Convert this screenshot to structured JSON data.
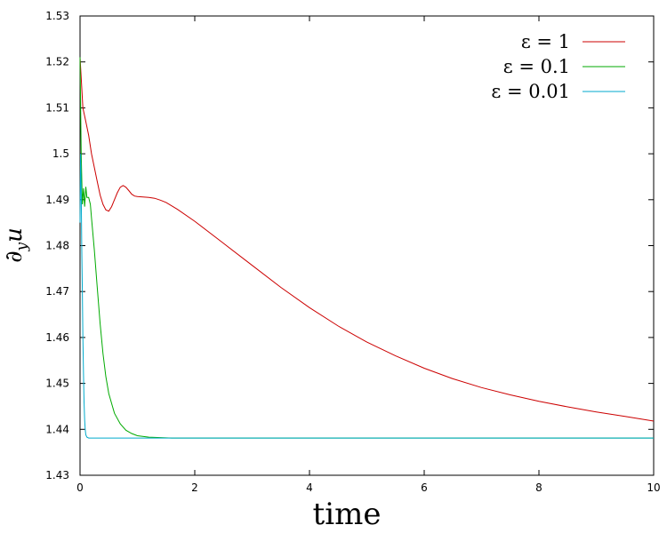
{
  "chart_data": {
    "type": "line",
    "title": "",
    "xlabel": "time",
    "ylabel": "∂yu",
    "xlim": [
      0,
      10
    ],
    "ylim": [
      1.43,
      1.53
    ],
    "xticks": [
      0,
      2,
      4,
      6,
      8,
      10
    ],
    "yticks": [
      1.43,
      1.44,
      1.45,
      1.46,
      1.47,
      1.48,
      1.49,
      1.5,
      1.51,
      1.52,
      1.53
    ],
    "ytick_labels": [
      "1.43",
      "1.44",
      "1.45",
      "1.46",
      "1.47",
      "1.48",
      "1.49",
      "1.5",
      "1.51",
      "1.52",
      "1.53"
    ],
    "grid": false,
    "legend_position": "top-right",
    "series": [
      {
        "name": "ε = 1",
        "color": "#cc0000",
        "x": [
          0,
          0.05,
          0.1,
          0.15,
          0.2,
          0.25,
          0.3,
          0.35,
          0.4,
          0.45,
          0.5,
          0.55,
          0.6,
          0.65,
          0.7,
          0.75,
          0.8,
          0.85,
          0.9,
          0.95,
          1.0,
          1.1,
          1.2,
          1.3,
          1.4,
          1.5,
          1.7,
          2.0,
          2.5,
          3.0,
          3.5,
          4.0,
          4.5,
          5.0,
          5.5,
          6.0,
          6.5,
          7.0,
          7.5,
          8.0,
          8.5,
          9.0,
          9.5,
          10
        ],
        "y": [
          1.521,
          1.51,
          1.507,
          1.504,
          1.5,
          1.497,
          1.494,
          1.491,
          1.489,
          1.4878,
          1.4875,
          1.4885,
          1.49,
          1.4915,
          1.4927,
          1.4931,
          1.4927,
          1.492,
          1.4912,
          1.4908,
          1.4907,
          1.4906,
          1.4905,
          1.4903,
          1.4899,
          1.4894,
          1.4879,
          1.4853,
          1.4805,
          1.4757,
          1.4709,
          1.4665,
          1.4625,
          1.459,
          1.456,
          1.4533,
          1.451,
          1.4491,
          1.4475,
          1.4461,
          1.4449,
          1.4438,
          1.4428,
          1.4418
        ]
      },
      {
        "name": "ε = 0.1",
        "color": "#00aa00",
        "x": [
          0,
          0.02,
          0.04,
          0.06,
          0.08,
          0.1,
          0.12,
          0.15,
          0.18,
          0.2,
          0.25,
          0.3,
          0.35,
          0.4,
          0.45,
          0.5,
          0.6,
          0.7,
          0.8,
          0.9,
          1.0,
          1.2,
          1.4,
          1.6,
          1.8,
          2.0,
          2.2,
          4,
          6,
          8,
          10
        ],
        "y": [
          1.521,
          1.5,
          1.489,
          1.4925,
          1.4885,
          1.4928,
          1.4905,
          1.4905,
          1.489,
          1.486,
          1.479,
          1.471,
          1.463,
          1.4565,
          1.4515,
          1.4478,
          1.4435,
          1.4412,
          1.4398,
          1.4391,
          1.4386,
          1.4383,
          1.4382,
          1.4381,
          1.4381,
          1.4381,
          1.4381,
          1.4381,
          1.4381,
          1.4381,
          1.4381
        ]
      },
      {
        "name": "ε = 0.01",
        "color": "#00aacc",
        "x": [
          0,
          0.01,
          0.02,
          0.03,
          0.04,
          0.05,
          0.06,
          0.07,
          0.08,
          0.09,
          0.1,
          0.12,
          0.15,
          0.2,
          0.3,
          0.5,
          1,
          2,
          4,
          6,
          8,
          10
        ],
        "y": [
          1.485,
          1.5,
          1.492,
          1.48,
          1.47,
          1.46,
          1.452,
          1.446,
          1.442,
          1.44,
          1.4388,
          1.4383,
          1.4381,
          1.4381,
          1.4381,
          1.4381,
          1.4381,
          1.4381,
          1.4381,
          1.4381,
          1.4381,
          1.4381
        ]
      }
    ]
  }
}
